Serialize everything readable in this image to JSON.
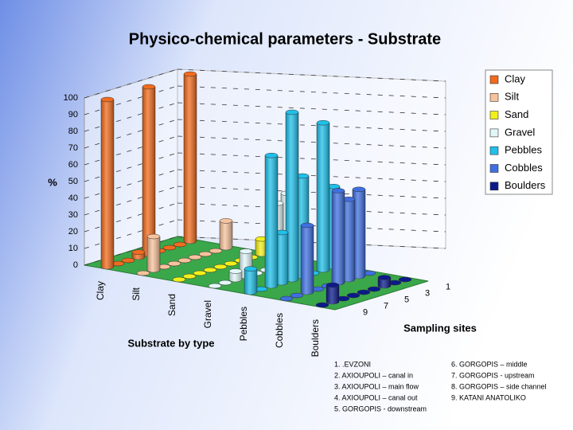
{
  "chart_data": {
    "type": "bar3d",
    "title": "Physico-chemical parameters - Substrate",
    "y_label": "%",
    "x_label": "Substrate by type",
    "z_label": "Sampling sites",
    "ylim": [
      0,
      100
    ],
    "yticks": [
      0,
      10,
      20,
      30,
      40,
      50,
      60,
      70,
      80,
      90,
      100
    ],
    "grid": true,
    "legend": "top-right",
    "sites": [
      "1",
      null,
      "3",
      null,
      "5",
      null,
      "7",
      null,
      "9"
    ],
    "site_names": [
      "1. .EVZONI",
      "2. AXIOUPOLI – canal in",
      "3. AXIOUPOLI – main flow",
      "4. AXIOUPOLI – canal out",
      "5. GORGOPIS - downstream",
      "6. GORGOPIS – middle",
      "7. GORGOPIS - upstream",
      "8. GORGOPIS – side channel",
      "9. KATANI  ANATOLIKO"
    ],
    "series": [
      {
        "name": "Clay",
        "color": "#f26b1d",
        "values": [
          100,
          0,
          0,
          0,
          100,
          3,
          0,
          0,
          100
        ]
      },
      {
        "name": "Silt",
        "color": "#f7c29c",
        "values": [
          16,
          0,
          0,
          0,
          0,
          0,
          0,
          20,
          0
        ]
      },
      {
        "name": "Sand",
        "color": "#f2f01a",
        "values": [
          9,
          0,
          0,
          0,
          0,
          0,
          0,
          0,
          0
        ]
      },
      {
        "name": "Gravel",
        "color": "#e2f8f8",
        "values": [
          0,
          42,
          38,
          0,
          0,
          15,
          5,
          0,
          0
        ]
      },
      {
        "name": "Pebbles",
        "color": "#1fc0ea",
        "values": [
          48,
          88,
          0,
          60,
          100,
          30,
          78,
          0,
          14
        ]
      },
      {
        "name": "Cobbles",
        "color": "#3f6fe0",
        "values": [
          0,
          52,
          48,
          55,
          0,
          0,
          40,
          0,
          0
        ]
      },
      {
        "name": "Boulders",
        "color": "#0b1a8a",
        "values": [
          0,
          0,
          5,
          0,
          0,
          0,
          0,
          10,
          0
        ]
      }
    ]
  }
}
